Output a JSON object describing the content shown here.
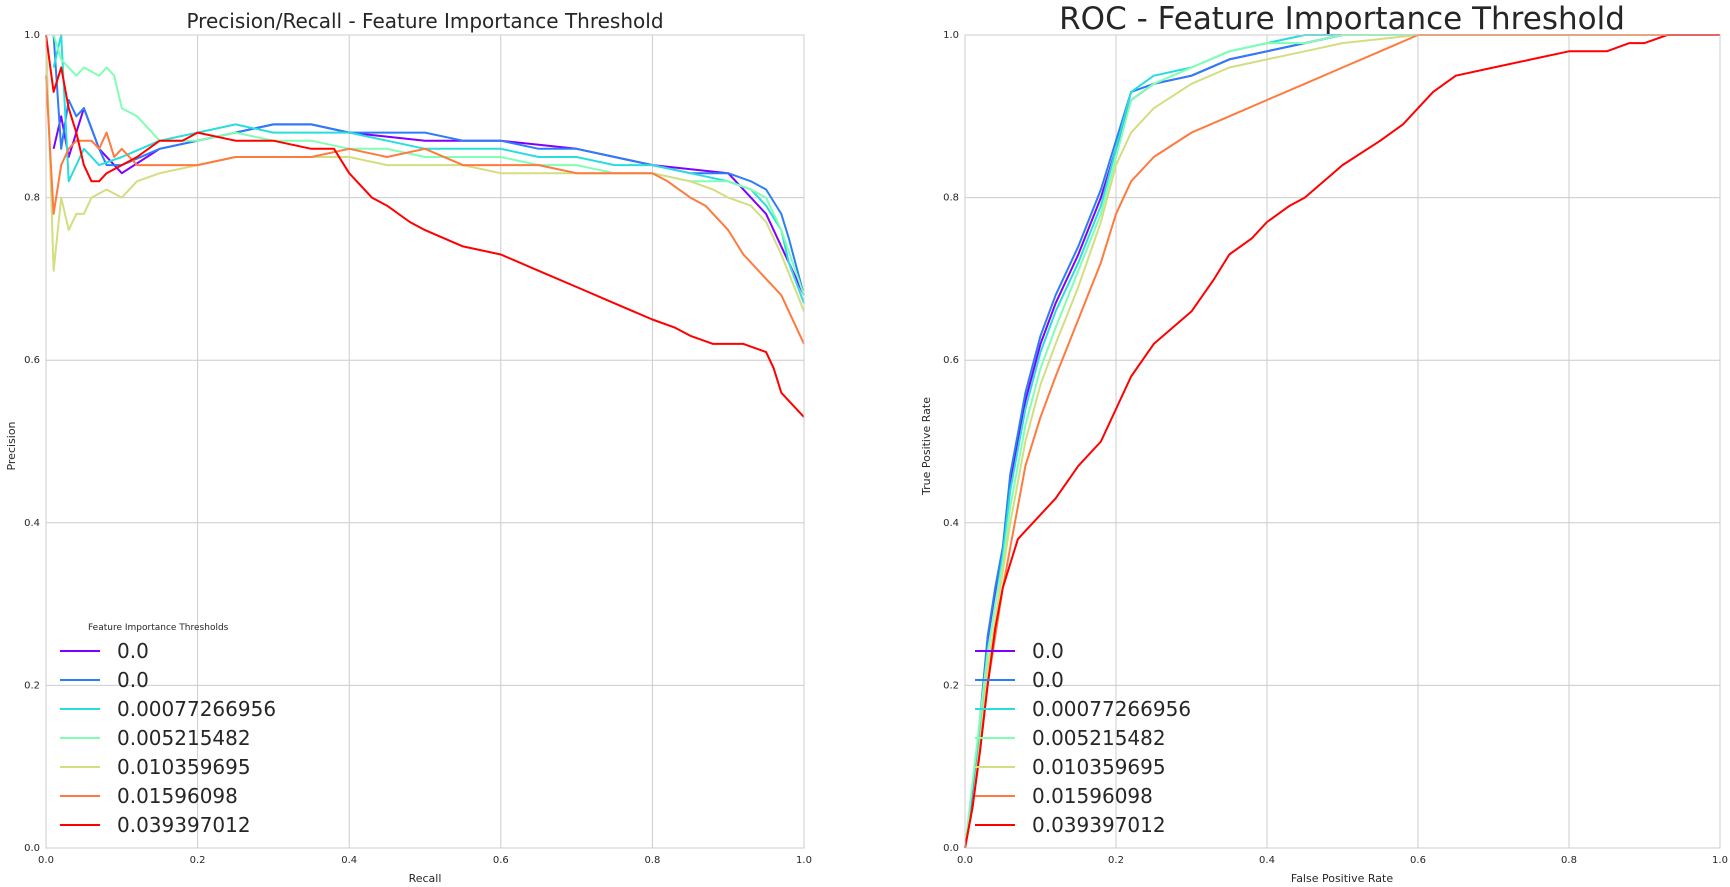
{
  "chart_data": [
    {
      "type": "line",
      "title": "Precision/Recall - Feature Importance Threshold",
      "xlabel": "Recall",
      "ylabel": "Precision",
      "xlim": [
        0.0,
        1.0
      ],
      "ylim": [
        0.0,
        1.0
      ],
      "xticks": [
        "0.0",
        "0.2",
        "0.4",
        "0.6",
        "0.8",
        "1.0"
      ],
      "yticks": [
        "0.0",
        "0.2",
        "0.4",
        "0.6",
        "0.8",
        "1.0"
      ],
      "grid": true,
      "legend_title": "Feature Importance Thresholds",
      "legend_position": "lower-left",
      "series": [
        {
          "name": "0.0",
          "color": "#8000ff",
          "x": [
            0.01,
            0.02,
            0.03,
            0.05,
            0.07,
            0.1,
            0.15,
            0.2,
            0.3,
            0.35,
            0.4,
            0.5,
            0.6,
            0.7,
            0.8,
            0.9,
            0.95,
            1.0
          ],
          "y": [
            0.86,
            0.9,
            0.85,
            0.91,
            0.86,
            0.83,
            0.86,
            0.87,
            0.89,
            0.89,
            0.88,
            0.87,
            0.87,
            0.86,
            0.84,
            0.83,
            0.78,
            0.68
          ]
        },
        {
          "name": "0.0",
          "color": "#2c7ef7",
          "x": [
            0.01,
            0.02,
            0.03,
            0.04,
            0.05,
            0.07,
            0.08,
            0.1,
            0.15,
            0.2,
            0.25,
            0.3,
            0.35,
            0.4,
            0.45,
            0.5,
            0.55,
            0.6,
            0.65,
            0.7,
            0.75,
            0.8,
            0.85,
            0.9,
            0.93,
            0.95,
            0.97,
            0.98,
            1.0
          ],
          "y": [
            1.0,
            0.86,
            0.92,
            0.9,
            0.91,
            0.86,
            0.84,
            0.84,
            0.86,
            0.87,
            0.88,
            0.89,
            0.89,
            0.88,
            0.88,
            0.88,
            0.87,
            0.87,
            0.86,
            0.86,
            0.85,
            0.84,
            0.83,
            0.83,
            0.82,
            0.81,
            0.78,
            0.75,
            0.68
          ]
        },
        {
          "name": "0.00077266956",
          "color": "#2adddd",
          "x": [
            0.01,
            0.02,
            0.03,
            0.05,
            0.07,
            0.1,
            0.15,
            0.2,
            0.25,
            0.3,
            0.35,
            0.4,
            0.45,
            0.5,
            0.55,
            0.6,
            0.65,
            0.7,
            0.75,
            0.8,
            0.85,
            0.9,
            0.93,
            0.95,
            0.97,
            0.98,
            1.0
          ],
          "y": [
            0.96,
            1.0,
            0.82,
            0.86,
            0.84,
            0.85,
            0.87,
            0.88,
            0.89,
            0.88,
            0.88,
            0.88,
            0.87,
            0.86,
            0.86,
            0.86,
            0.85,
            0.85,
            0.84,
            0.84,
            0.83,
            0.82,
            0.81,
            0.79,
            0.76,
            0.72,
            0.67
          ]
        },
        {
          "name": "0.005215482",
          "color": "#80ffb4",
          "x": [
            0.01,
            0.02,
            0.04,
            0.05,
            0.07,
            0.08,
            0.09,
            0.1,
            0.12,
            0.15,
            0.2,
            0.25,
            0.3,
            0.35,
            0.4,
            0.45,
            0.5,
            0.55,
            0.6,
            0.65,
            0.7,
            0.75,
            0.8,
            0.85,
            0.9,
            0.93,
            0.95,
            0.97,
            1.0
          ],
          "y": [
            1.0,
            0.97,
            0.95,
            0.96,
            0.95,
            0.96,
            0.95,
            0.91,
            0.9,
            0.87,
            0.87,
            0.88,
            0.87,
            0.87,
            0.86,
            0.86,
            0.85,
            0.85,
            0.85,
            0.84,
            0.84,
            0.83,
            0.83,
            0.82,
            0.82,
            0.81,
            0.8,
            0.76,
            0.68
          ]
        },
        {
          "name": "0.010359695",
          "color": "#d4dd80",
          "x": [
            0.0,
            0.01,
            0.02,
            0.03,
            0.04,
            0.05,
            0.06,
            0.08,
            0.1,
            0.12,
            0.15,
            0.2,
            0.25,
            0.3,
            0.35,
            0.4,
            0.45,
            0.5,
            0.55,
            0.6,
            0.65,
            0.7,
            0.75,
            0.8,
            0.85,
            0.88,
            0.9,
            0.93,
            0.95,
            0.97,
            1.0
          ],
          "y": [
            1.0,
            0.71,
            0.8,
            0.76,
            0.78,
            0.78,
            0.8,
            0.81,
            0.8,
            0.82,
            0.83,
            0.84,
            0.85,
            0.85,
            0.85,
            0.85,
            0.84,
            0.84,
            0.84,
            0.83,
            0.83,
            0.83,
            0.83,
            0.83,
            0.82,
            0.81,
            0.8,
            0.79,
            0.77,
            0.73,
            0.66
          ]
        },
        {
          "name": "0.01596098",
          "color": "#ff7a3e",
          "x": [
            0.0,
            0.01,
            0.02,
            0.03,
            0.04,
            0.06,
            0.07,
            0.08,
            0.09,
            0.1,
            0.12,
            0.15,
            0.2,
            0.25,
            0.3,
            0.35,
            0.4,
            0.45,
            0.5,
            0.55,
            0.6,
            0.65,
            0.7,
            0.75,
            0.8,
            0.82,
            0.85,
            0.87,
            0.9,
            0.92,
            0.95,
            0.97,
            1.0
          ],
          "y": [
            0.95,
            0.78,
            0.84,
            0.86,
            0.87,
            0.87,
            0.86,
            0.88,
            0.85,
            0.86,
            0.84,
            0.84,
            0.84,
            0.85,
            0.85,
            0.85,
            0.86,
            0.85,
            0.86,
            0.84,
            0.84,
            0.84,
            0.83,
            0.83,
            0.83,
            0.82,
            0.8,
            0.79,
            0.76,
            0.73,
            0.7,
            0.68,
            0.62
          ]
        },
        {
          "name": "0.039397012",
          "color": "#ff0000",
          "x": [
            0.0,
            0.01,
            0.02,
            0.03,
            0.04,
            0.05,
            0.06,
            0.07,
            0.08,
            0.1,
            0.12,
            0.15,
            0.18,
            0.2,
            0.25,
            0.3,
            0.35,
            0.38,
            0.4,
            0.43,
            0.45,
            0.48,
            0.5,
            0.55,
            0.6,
            0.65,
            0.7,
            0.75,
            0.8,
            0.83,
            0.85,
            0.88,
            0.9,
            0.92,
            0.95,
            0.96,
            0.97,
            0.98,
            1.0
          ],
          "y": [
            1.0,
            0.93,
            0.96,
            0.91,
            0.88,
            0.84,
            0.82,
            0.82,
            0.83,
            0.84,
            0.85,
            0.87,
            0.87,
            0.88,
            0.87,
            0.87,
            0.86,
            0.86,
            0.83,
            0.8,
            0.79,
            0.77,
            0.76,
            0.74,
            0.73,
            0.71,
            0.69,
            0.67,
            0.65,
            0.64,
            0.63,
            0.62,
            0.62,
            0.62,
            0.61,
            0.59,
            0.56,
            0.55,
            0.53
          ]
        }
      ]
    },
    {
      "type": "line",
      "title": "ROC - Feature Importance Threshold",
      "xlabel": "False Positive Rate",
      "ylabel": "True Positive Rate",
      "xlim": [
        0.0,
        1.0
      ],
      "ylim": [
        0.0,
        1.0
      ],
      "xticks": [
        "0.0",
        "0.2",
        "0.4",
        "0.6",
        "0.8",
        "1.0"
      ],
      "yticks": [
        "0.0",
        "0.2",
        "0.4",
        "0.6",
        "0.8",
        "1.0"
      ],
      "grid": true,
      "legend_position": "lower-left",
      "series": [
        {
          "name": "0.0",
          "color": "#8000ff",
          "x": [
            0.0,
            0.01,
            0.02,
            0.03,
            0.04,
            0.05,
            0.06,
            0.07,
            0.08,
            0.1,
            0.12,
            0.15,
            0.18,
            0.2,
            0.22,
            0.25,
            0.3,
            0.35,
            0.4,
            0.45,
            0.5,
            0.6,
            1.0
          ],
          "y": [
            0.0,
            0.06,
            0.15,
            0.25,
            0.31,
            0.36,
            0.45,
            0.5,
            0.55,
            0.62,
            0.67,
            0.73,
            0.8,
            0.86,
            0.92,
            0.94,
            0.95,
            0.97,
            0.98,
            0.99,
            1.0,
            1.0,
            1.0
          ]
        },
        {
          "name": "0.0",
          "color": "#2c7ef7",
          "x": [
            0.0,
            0.01,
            0.02,
            0.03,
            0.04,
            0.05,
            0.06,
            0.07,
            0.08,
            0.1,
            0.12,
            0.15,
            0.18,
            0.2,
            0.22,
            0.25,
            0.3,
            0.35,
            0.4,
            0.45,
            0.5,
            0.6,
            1.0
          ],
          "y": [
            0.0,
            0.06,
            0.16,
            0.26,
            0.32,
            0.37,
            0.46,
            0.51,
            0.56,
            0.63,
            0.68,
            0.74,
            0.81,
            0.87,
            0.93,
            0.94,
            0.95,
            0.97,
            0.98,
            0.99,
            1.0,
            1.0,
            1.0
          ]
        },
        {
          "name": "0.00077266956",
          "color": "#2adddd",
          "x": [
            0.0,
            0.01,
            0.02,
            0.03,
            0.04,
            0.05,
            0.06,
            0.07,
            0.08,
            0.1,
            0.12,
            0.15,
            0.18,
            0.2,
            0.22,
            0.25,
            0.3,
            0.35,
            0.4,
            0.45,
            0.5,
            0.6,
            1.0
          ],
          "y": [
            0.0,
            0.05,
            0.14,
            0.24,
            0.3,
            0.36,
            0.44,
            0.49,
            0.54,
            0.61,
            0.66,
            0.72,
            0.79,
            0.86,
            0.93,
            0.95,
            0.96,
            0.98,
            0.99,
            1.0,
            1.0,
            1.0,
            1.0
          ]
        },
        {
          "name": "0.005215482",
          "color": "#80ffb4",
          "x": [
            0.0,
            0.01,
            0.02,
            0.03,
            0.04,
            0.05,
            0.06,
            0.07,
            0.08,
            0.1,
            0.12,
            0.15,
            0.18,
            0.2,
            0.22,
            0.25,
            0.3,
            0.35,
            0.4,
            0.45,
            0.5,
            0.6,
            1.0
          ],
          "y": [
            0.0,
            0.08,
            0.16,
            0.24,
            0.3,
            0.35,
            0.42,
            0.47,
            0.52,
            0.59,
            0.64,
            0.71,
            0.78,
            0.85,
            0.92,
            0.94,
            0.96,
            0.98,
            0.99,
            0.99,
            1.0,
            1.0,
            1.0
          ]
        },
        {
          "name": "0.010359695",
          "color": "#d4dd80",
          "x": [
            0.0,
            0.01,
            0.02,
            0.03,
            0.04,
            0.05,
            0.06,
            0.07,
            0.08,
            0.1,
            0.12,
            0.15,
            0.18,
            0.2,
            0.22,
            0.25,
            0.3,
            0.35,
            0.4,
            0.45,
            0.5,
            0.6,
            1.0
          ],
          "y": [
            0.0,
            0.05,
            0.13,
            0.22,
            0.28,
            0.34,
            0.4,
            0.45,
            0.5,
            0.57,
            0.62,
            0.69,
            0.77,
            0.84,
            0.88,
            0.91,
            0.94,
            0.96,
            0.97,
            0.98,
            0.99,
            1.0,
            1.0
          ]
        },
        {
          "name": "0.01596098",
          "color": "#ff7a3e",
          "x": [
            0.0,
            0.01,
            0.02,
            0.03,
            0.04,
            0.05,
            0.06,
            0.07,
            0.08,
            0.1,
            0.12,
            0.15,
            0.18,
            0.2,
            0.22,
            0.25,
            0.3,
            0.35,
            0.4,
            0.45,
            0.5,
            0.55,
            0.6,
            0.65,
            1.0
          ],
          "y": [
            0.0,
            0.05,
            0.12,
            0.2,
            0.26,
            0.32,
            0.37,
            0.42,
            0.47,
            0.53,
            0.58,
            0.65,
            0.72,
            0.78,
            0.82,
            0.85,
            0.88,
            0.9,
            0.92,
            0.94,
            0.96,
            0.98,
            1.0,
            1.0,
            1.0
          ]
        },
        {
          "name": "0.039397012",
          "color": "#ff0000",
          "x": [
            0.0,
            0.01,
            0.02,
            0.03,
            0.04,
            0.05,
            0.06,
            0.07,
            0.08,
            0.1,
            0.12,
            0.15,
            0.18,
            0.2,
            0.22,
            0.25,
            0.3,
            0.33,
            0.35,
            0.38,
            0.4,
            0.43,
            0.45,
            0.5,
            0.55,
            0.58,
            0.6,
            0.62,
            0.65,
            0.7,
            0.75,
            0.8,
            0.85,
            0.88,
            0.9,
            0.93,
            1.0
          ],
          "y": [
            0.0,
            0.05,
            0.12,
            0.2,
            0.27,
            0.32,
            0.35,
            0.38,
            0.39,
            0.41,
            0.43,
            0.47,
            0.5,
            0.54,
            0.58,
            0.62,
            0.66,
            0.7,
            0.73,
            0.75,
            0.77,
            0.79,
            0.8,
            0.84,
            0.87,
            0.89,
            0.91,
            0.93,
            0.95,
            0.96,
            0.97,
            0.98,
            0.98,
            0.99,
            0.99,
            1.0,
            1.0
          ]
        }
      ]
    }
  ]
}
